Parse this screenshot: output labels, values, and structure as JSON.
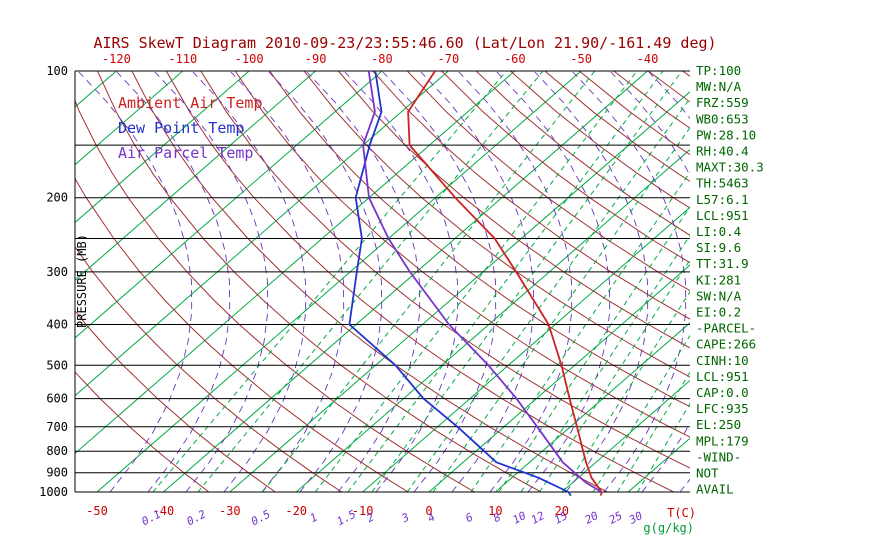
{
  "title": "AIRS SkewT Diagram 2010-09-23/23:55:46.60 (Lat/Lon 21.90/-161.49 deg)",
  "axes": {
    "pressure_label": "PRESSURE (MB)",
    "pressure_ticks": [
      100,
      200,
      300,
      400,
      500,
      600,
      700,
      800,
      900,
      1000
    ],
    "pressure_grid": [
      100,
      150,
      200,
      250,
      300,
      400,
      500,
      600,
      700,
      800,
      900,
      1000
    ],
    "top_temp_ticks": [
      -120,
      -110,
      -100,
      -90,
      -80,
      -70,
      -60,
      -50,
      -40
    ],
    "bottom_temp_ticks": [
      -50,
      -40,
      -30,
      -20,
      -10,
      0,
      10,
      20
    ],
    "temp_unit_label": "T(C)",
    "mixing_ratio_ticks": [
      0.1,
      0.2,
      0.5,
      1,
      1.5,
      2,
      3,
      4,
      6,
      8,
      10,
      12,
      15,
      20,
      25,
      30
    ],
    "mixing_ratio_unit_label": "g(g/kg)"
  },
  "legend": [
    {
      "label": "Ambient Air Temp",
      "color": "#cc2222"
    },
    {
      "label": "Dew Point Temp",
      "color": "#2233cc"
    },
    {
      "label": "Air Parcel Temp",
      "color": "#7733cc"
    }
  ],
  "stats": [
    "TP:100",
    "MW:N/A",
    "FRZ:559",
    "WB0:653",
    "PW:28.10",
    "RH:40.4",
    "MAXT:30.3",
    "TH:5463",
    "L57:6.1",
    "LCL:951",
    "LI:0.4",
    "SI:9.6",
    "TT:31.9",
    "KI:281",
    "SW:N/A",
    "EI:0.2",
    "-PARCEL-",
    "CAPE:266",
    "CINH:10",
    "LCL:951",
    "CAP:0.0",
    "LFC:935",
    "EL:250",
    "MPL:179",
    "-WIND-",
    "NOT",
    "AVAIL"
  ],
  "colors": {
    "isotherm": "#00aa44",
    "dry_adiabat": "#a03333",
    "moist_adiabat": "#6633bb",
    "mixing_ratio": "#00aa44",
    "pressure_line": "#000000",
    "title": "#990000",
    "temp_tick": "#cc0000",
    "stats_text": "#006600"
  },
  "chart_data": {
    "type": "line",
    "diagram": "skew-t-log-p",
    "title": "AIRS SkewT Diagram 2010-09-23/23:55:46.60 (Lat/Lon 21.90/-161.49 deg)",
    "xlabel": "T(C)",
    "ylabel": "PRESSURE (MB)",
    "y_scale": "log",
    "pressure_range": [
      1020,
      100
    ],
    "temp_top_range": [
      -120,
      -40
    ],
    "temp_bottom_range": [
      -50,
      30
    ],
    "legend_position": "upper-left-inside",
    "series": [
      {
        "name": "Ambient Air Temp",
        "color": "#cc2222",
        "points_pressure_temp": [
          [
            1020,
            26.5
          ],
          [
            1000,
            26
          ],
          [
            925,
            22
          ],
          [
            850,
            18.5
          ],
          [
            700,
            11
          ],
          [
            600,
            5
          ],
          [
            500,
            -2
          ],
          [
            400,
            -11
          ],
          [
            300,
            -25
          ],
          [
            250,
            -34
          ],
          [
            200,
            -47
          ],
          [
            150,
            -63
          ],
          [
            125,
            -69
          ],
          [
            100,
            -72
          ]
        ]
      },
      {
        "name": "Dew Point Temp",
        "color": "#2233cc",
        "points_pressure_temp": [
          [
            1020,
            22
          ],
          [
            1000,
            21
          ],
          [
            925,
            14
          ],
          [
            850,
            5
          ],
          [
            700,
            -7
          ],
          [
            600,
            -17
          ],
          [
            500,
            -27
          ],
          [
            400,
            -41
          ],
          [
            300,
            -49
          ],
          [
            250,
            -54
          ],
          [
            200,
            -62
          ],
          [
            150,
            -69
          ],
          [
            125,
            -73
          ],
          [
            100,
            -81
          ]
        ]
      },
      {
        "name": "Air Parcel Temp",
        "color": "#7733cc",
        "points_pressure_temp": [
          [
            1000,
            26
          ],
          [
            950,
            22
          ],
          [
            850,
            15
          ],
          [
            700,
            5
          ],
          [
            600,
            -3
          ],
          [
            500,
            -13
          ],
          [
            400,
            -26
          ],
          [
            300,
            -41
          ],
          [
            250,
            -50
          ],
          [
            200,
            -60
          ],
          [
            150,
            -70
          ],
          [
            125,
            -74
          ],
          [
            100,
            -82
          ]
        ]
      }
    ]
  }
}
